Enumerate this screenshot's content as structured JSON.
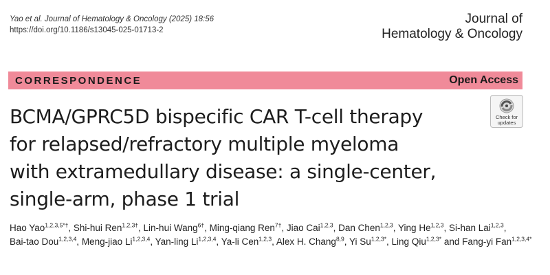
{
  "citation": {
    "line1": "Yao et al. Journal of Hematology & Oncology   (2025) 18:56",
    "line2": "https://doi.org/10.1186/s13045-025-01713-2"
  },
  "journal": {
    "line1": "Journal of",
    "line2": "Hematology & Oncology"
  },
  "banner": {
    "article_type": "CORRESPONDENCE",
    "access": "Open Access",
    "color": "#f08a99"
  },
  "check_updates": {
    "label": "Check for updates",
    "icon": "check-for-updates-icon"
  },
  "title": {
    "line1": "BCMA/GPRC5D bispecific CAR T-cell therapy",
    "line2": "for relapsed/refractory multiple myeloma",
    "line3": "with extramedullary disease: a single-center,",
    "line4": "single-arm, phase 1 trial"
  },
  "authors": [
    {
      "name": "Hao Yao",
      "sup": "1,2,3,5*†",
      "sep": ", "
    },
    {
      "name": "Shi-hui Ren",
      "sup": "1,2,3†",
      "sep": ", "
    },
    {
      "name": "Lin-hui Wang",
      "sup": "6†",
      "sep": ", "
    },
    {
      "name": "Ming-qiang Ren",
      "sup": "7†",
      "sep": ", "
    },
    {
      "name": "Jiao Cai",
      "sup": "1,2,3",
      "sep": ", "
    },
    {
      "name": "Dan Chen",
      "sup": "1,2,3",
      "sep": ", "
    },
    {
      "name": "Ying He",
      "sup": "1,2,3",
      "sep": ", "
    },
    {
      "name": "Si-han Lai",
      "sup": "1,2,3",
      "sep": ", "
    },
    {
      "name": "Bai-tao Dou",
      "sup": "1,2,3,4",
      "sep": ", "
    },
    {
      "name": "Meng-jiao Li",
      "sup": "1,2,3,4",
      "sep": ", "
    },
    {
      "name": "Yan-ling Li",
      "sup": "1,2,3,4",
      "sep": ", "
    },
    {
      "name": "Ya-li Cen",
      "sup": "1,2,3",
      "sep": ", "
    },
    {
      "name": "Alex H. Chang",
      "sup": "8,9",
      "sep": ", "
    },
    {
      "name": "Yi Su",
      "sup": "1,2,3*",
      "sep": ", "
    },
    {
      "name": "Ling Qiu",
      "sup": "1,2,3*",
      "sep": " and "
    },
    {
      "name": "Fang-yi Fan",
      "sup": "1,2,3,4*",
      "sep": ""
    }
  ]
}
